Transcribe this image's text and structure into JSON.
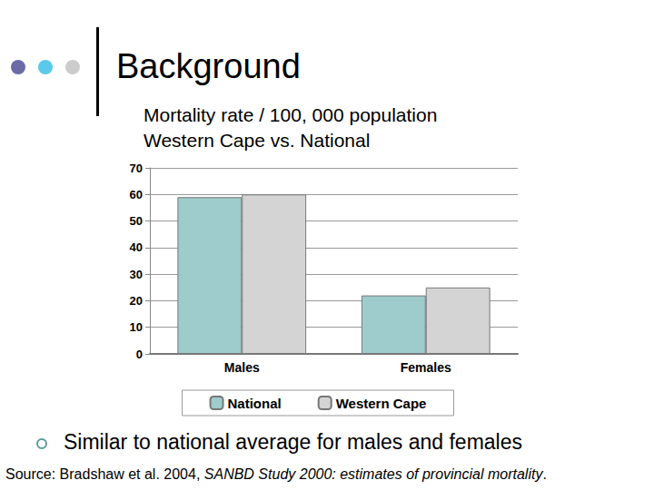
{
  "slide": {
    "heading": "Background",
    "bullet": "Similar to national average for males and females",
    "source": {
      "text": "Source: Bradshaw et al. 2004, ",
      "italic": "SANBD Study 2000: estimates of provincial mortality",
      "end": "."
    }
  },
  "chart_data": {
    "type": "bar",
    "title": "Mortality rate / 100, 000 population",
    "subtitle": "Western Cape vs. National",
    "categories": [
      "Males",
      "Females"
    ],
    "series": [
      {
        "name": "National",
        "color": "#9ecbcc",
        "values": [
          59,
          22
        ]
      },
      {
        "name": "Western Cape",
        "color": "#d4d4d4",
        "values": [
          60,
          25
        ]
      }
    ],
    "ylim": [
      0,
      70
    ],
    "yticks": [
      0,
      10,
      20,
      30,
      40,
      50,
      60,
      70
    ],
    "grid": true,
    "legend": "bottom"
  }
}
